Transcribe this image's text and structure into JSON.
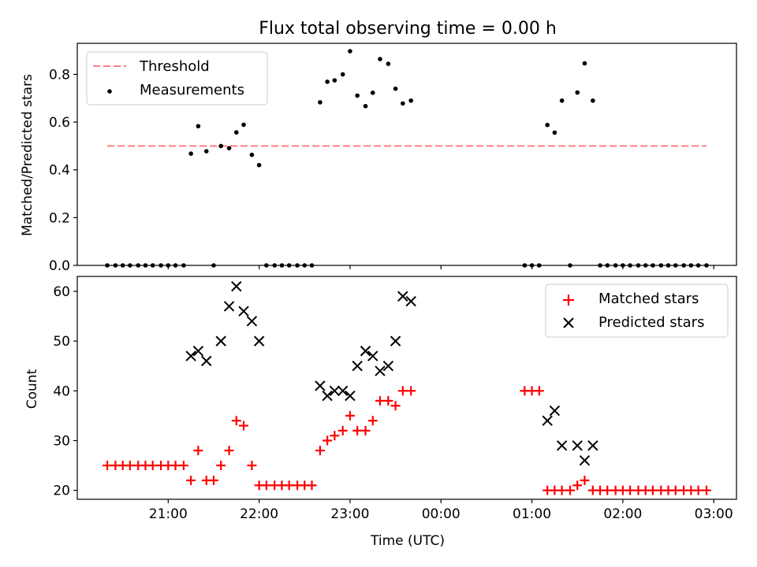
{
  "chart_data": [
    {
      "type": "scatter",
      "title": "Flux total observing time = 0.00 h",
      "xlabel": "",
      "ylabel": "Matched/Predicted stars",
      "x_unit": "hours",
      "xlim": [
        20.0,
        27.25
      ],
      "ylim": [
        0.0,
        0.93
      ],
      "yticks": [
        0.0,
        0.2,
        0.4,
        0.6,
        0.8
      ],
      "ytick_labels": [
        "0.0",
        "0.2",
        "0.4",
        "0.6",
        "0.8"
      ],
      "grid": false,
      "legend": "upper left",
      "threshold": {
        "name": "Threshold",
        "value": 0.5,
        "x_range": [
          20.33,
          26.92
        ],
        "color": "#ff7f7f",
        "style": "dashed"
      },
      "series": [
        {
          "name": "Measurements",
          "color": "#000000",
          "marker": "dot",
          "points": [
            [
              20.33,
              0.0
            ],
            [
              20.42,
              0.0
            ],
            [
              20.5,
              0.0
            ],
            [
              20.58,
              0.0
            ],
            [
              20.67,
              0.0
            ],
            [
              20.75,
              0.0
            ],
            [
              20.83,
              0.0
            ],
            [
              20.92,
              0.0
            ],
            [
              21.0,
              0.0
            ],
            [
              21.08,
              0.0
            ],
            [
              21.17,
              0.0
            ],
            [
              21.25,
              0.468
            ],
            [
              21.33,
              0.583
            ],
            [
              21.42,
              0.478
            ],
            [
              21.5,
              0.0
            ],
            [
              21.58,
              0.5
            ],
            [
              21.67,
              0.491
            ],
            [
              21.75,
              0.557
            ],
            [
              21.83,
              0.589
            ],
            [
              21.92,
              0.463
            ],
            [
              22.0,
              0.42
            ],
            [
              22.08,
              0.0
            ],
            [
              22.17,
              0.0
            ],
            [
              22.25,
              0.0
            ],
            [
              22.33,
              0.0
            ],
            [
              22.42,
              0.0
            ],
            [
              22.5,
              0.0
            ],
            [
              22.58,
              0.0
            ],
            [
              22.67,
              0.683
            ],
            [
              22.75,
              0.769
            ],
            [
              22.83,
              0.775
            ],
            [
              22.92,
              0.8
            ],
            [
              23.0,
              0.897
            ],
            [
              23.08,
              0.711
            ],
            [
              23.17,
              0.667
            ],
            [
              23.25,
              0.723
            ],
            [
              23.33,
              0.864
            ],
            [
              23.42,
              0.844
            ],
            [
              23.5,
              0.74
            ],
            [
              23.58,
              0.678
            ],
            [
              23.67,
              0.69
            ],
            [
              24.92,
              0.0
            ],
            [
              25.0,
              0.0
            ],
            [
              25.08,
              0.0
            ],
            [
              25.17,
              0.588
            ],
            [
              25.25,
              0.556
            ],
            [
              25.33,
              0.69
            ],
            [
              25.42,
              0.0
            ],
            [
              25.5,
              0.724
            ],
            [
              25.58,
              0.846
            ],
            [
              25.67,
              0.69
            ],
            [
              25.75,
              0.0
            ],
            [
              25.83,
              0.0
            ],
            [
              25.92,
              0.0
            ],
            [
              26.0,
              0.0
            ],
            [
              26.08,
              0.0
            ],
            [
              26.17,
              0.0
            ],
            [
              26.25,
              0.0
            ],
            [
              26.33,
              0.0
            ],
            [
              26.42,
              0.0
            ],
            [
              26.5,
              0.0
            ],
            [
              26.58,
              0.0
            ],
            [
              26.67,
              0.0
            ],
            [
              26.75,
              0.0
            ],
            [
              26.83,
              0.0
            ],
            [
              26.92,
              0.0
            ]
          ]
        }
      ]
    },
    {
      "type": "scatter",
      "title": "",
      "xlabel": "Time (UTC)",
      "ylabel": "Count",
      "x_unit": "hours",
      "xlim": [
        20.0,
        27.25
      ],
      "ylim": [
        18.2,
        63.0
      ],
      "yticks": [
        20,
        30,
        40,
        50,
        60
      ],
      "ytick_labels": [
        "20",
        "30",
        "40",
        "50",
        "60"
      ],
      "xticks": [
        21,
        22,
        23,
        24,
        25,
        26,
        27
      ],
      "xtick_labels": [
        "21:00",
        "22:00",
        "23:00",
        "00:00",
        "01:00",
        "02:00",
        "03:00"
      ],
      "grid": false,
      "legend": "upper right",
      "series": [
        {
          "name": "Matched stars",
          "color": "#ff0000",
          "marker": "plus",
          "points": [
            [
              20.33,
              25
            ],
            [
              20.42,
              25
            ],
            [
              20.5,
              25
            ],
            [
              20.58,
              25
            ],
            [
              20.67,
              25
            ],
            [
              20.75,
              25
            ],
            [
              20.83,
              25
            ],
            [
              20.92,
              25
            ],
            [
              21.0,
              25
            ],
            [
              21.08,
              25
            ],
            [
              21.17,
              25
            ],
            [
              21.25,
              22
            ],
            [
              21.33,
              28
            ],
            [
              21.42,
              22
            ],
            [
              21.5,
              22
            ],
            [
              21.58,
              25
            ],
            [
              21.67,
              28
            ],
            [
              21.75,
              34
            ],
            [
              21.83,
              33
            ],
            [
              21.92,
              25
            ],
            [
              22.0,
              21
            ],
            [
              22.08,
              21
            ],
            [
              22.17,
              21
            ],
            [
              22.25,
              21
            ],
            [
              22.33,
              21
            ],
            [
              22.42,
              21
            ],
            [
              22.5,
              21
            ],
            [
              22.58,
              21
            ],
            [
              22.67,
              28
            ],
            [
              22.75,
              30
            ],
            [
              22.83,
              31
            ],
            [
              22.92,
              32
            ],
            [
              23.0,
              35
            ],
            [
              23.08,
              32
            ],
            [
              23.17,
              32
            ],
            [
              23.25,
              34
            ],
            [
              23.33,
              38
            ],
            [
              23.42,
              38
            ],
            [
              23.5,
              37
            ],
            [
              23.58,
              40
            ],
            [
              23.67,
              40
            ],
            [
              24.92,
              40
            ],
            [
              25.0,
              40
            ],
            [
              25.08,
              40
            ],
            [
              25.17,
              20
            ],
            [
              25.25,
              20
            ],
            [
              25.33,
              20
            ],
            [
              25.42,
              20
            ],
            [
              25.5,
              21
            ],
            [
              25.58,
              22
            ],
            [
              25.67,
              20
            ],
            [
              25.75,
              20
            ],
            [
              25.83,
              20
            ],
            [
              25.92,
              20
            ],
            [
              26.0,
              20
            ],
            [
              26.08,
              20
            ],
            [
              26.17,
              20
            ],
            [
              26.25,
              20
            ],
            [
              26.33,
              20
            ],
            [
              26.42,
              20
            ],
            [
              26.5,
              20
            ],
            [
              26.58,
              20
            ],
            [
              26.67,
              20
            ],
            [
              26.75,
              20
            ],
            [
              26.83,
              20
            ],
            [
              26.92,
              20
            ]
          ]
        },
        {
          "name": "Predicted stars",
          "color": "#000000",
          "marker": "x",
          "points": [
            [
              21.25,
              47
            ],
            [
              21.33,
              48
            ],
            [
              21.42,
              46
            ],
            [
              21.58,
              50
            ],
            [
              21.67,
              57
            ],
            [
              21.75,
              61
            ],
            [
              21.83,
              56
            ],
            [
              21.92,
              54
            ],
            [
              22.0,
              50
            ],
            [
              22.67,
              41
            ],
            [
              22.75,
              39
            ],
            [
              22.83,
              40
            ],
            [
              22.92,
              40
            ],
            [
              23.0,
              39
            ],
            [
              23.08,
              45
            ],
            [
              23.17,
              48
            ],
            [
              23.25,
              47
            ],
            [
              23.33,
              44
            ],
            [
              23.42,
              45
            ],
            [
              23.5,
              50
            ],
            [
              23.58,
              59
            ],
            [
              23.67,
              58
            ],
            [
              25.17,
              34
            ],
            [
              25.25,
              36
            ],
            [
              25.33,
              29
            ],
            [
              25.5,
              29
            ],
            [
              25.58,
              26
            ],
            [
              25.67,
              29
            ]
          ]
        }
      ]
    }
  ]
}
